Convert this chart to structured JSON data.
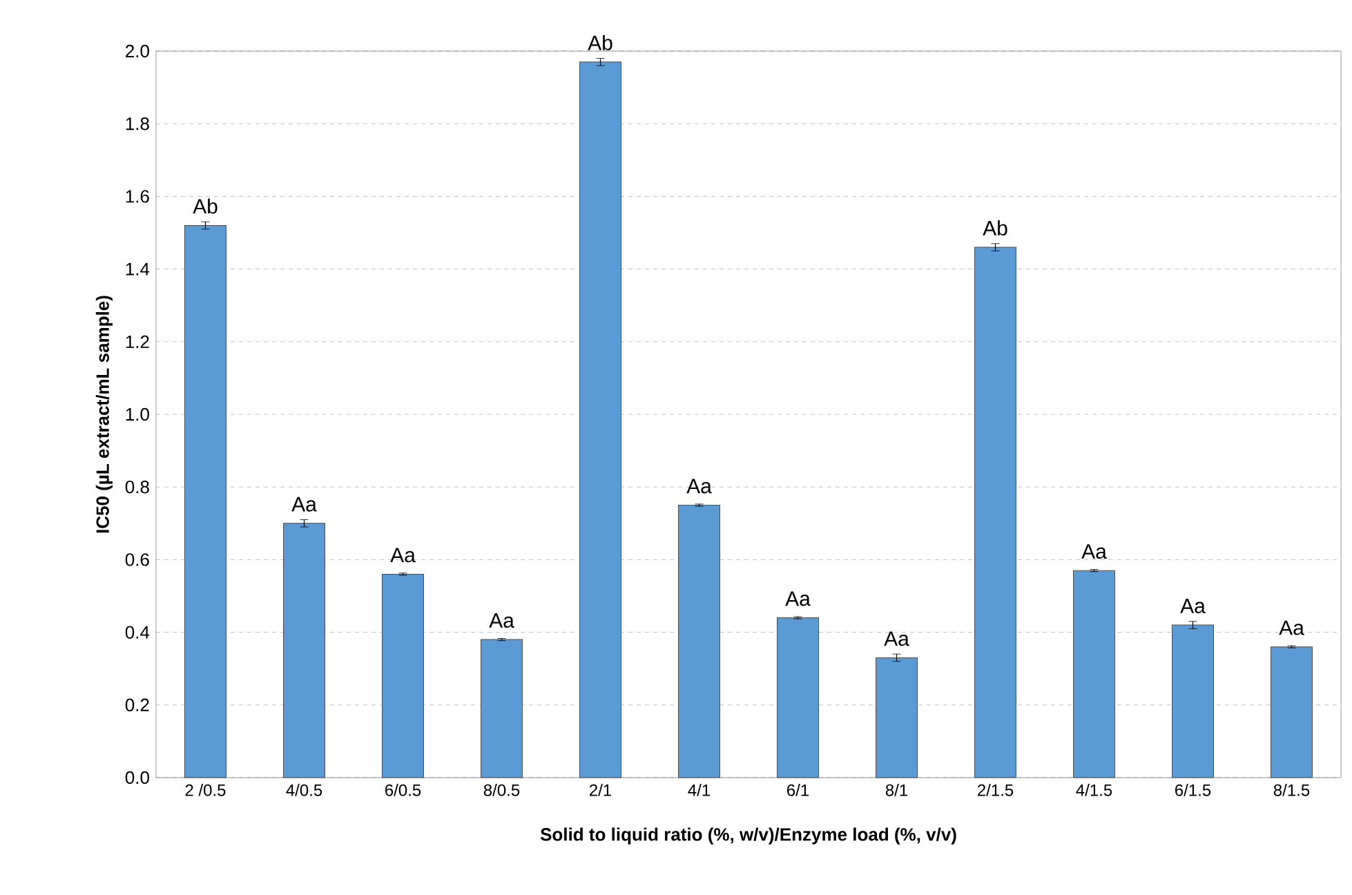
{
  "chart_data": {
    "type": "bar",
    "xlabel": "Solid to liquid ratio (%, w/v)/Enzyme load (%, v/v)",
    "ylabel": "IC50 (µL extract/mL sample)",
    "categories": [
      "2 /0.5",
      "4/0.5",
      "6/0.5",
      "8/0.5",
      "2/1",
      "4/1",
      "6/1",
      "8/1",
      "2/1.5",
      "4/1.5",
      "6/1.5",
      "8/1.5"
    ],
    "values": [
      1.52,
      0.7,
      0.56,
      0.38,
      1.97,
      0.75,
      0.44,
      0.33,
      1.46,
      0.57,
      0.42,
      0.36
    ],
    "errors": [
      0.01,
      0.01,
      0.003,
      0.003,
      0.01,
      0.003,
      0.003,
      0.01,
      0.01,
      0.003,
      0.01,
      0.003
    ],
    "color": "#5b9bd5",
    "ylim": [
      0,
      2.0
    ],
    "yticks": [
      {
        "value": 0,
        "label": "0.0"
      },
      {
        "value": 0.2,
        "label": "0.2"
      },
      {
        "value": 0.4,
        "label": "0.4"
      },
      {
        "value": 0.6,
        "label": "0.6"
      },
      {
        "value": 0.8,
        "label": "0.8"
      },
      {
        "value": 1.0,
        "label": "1.0"
      },
      {
        "value": 1.2,
        "label": "1.2"
      },
      {
        "value": 1.4,
        "label": "1.4"
      },
      {
        "value": 1.6,
        "label": "1.6"
      },
      {
        "value": 1.8,
        "label": "1.8"
      },
      {
        "value": 2.0,
        "label": "2.0"
      }
    ],
    "grid": "y",
    "annotations": [
      {
        "text": "Ab",
        "x": "2 /0.5",
        "y": 1.52
      },
      {
        "text": "Aa",
        "x": "4/0.5",
        "y": 0.7
      },
      {
        "text": "Aa",
        "x": "6/0.5",
        "y": 0.56
      },
      {
        "text": "Aa",
        "x": "8/0.5",
        "y": 0.38
      },
      {
        "text": "Ab",
        "x": "2/1",
        "y": 1.97
      },
      {
        "text": "Aa",
        "x": "4/1",
        "y": 0.75
      },
      {
        "text": "Aa",
        "x": "6/1",
        "y": 0.44
      },
      {
        "text": "Aa",
        "x": "8/1",
        "y": 0.33
      },
      {
        "text": "Ab",
        "x": "2/1.5",
        "y": 1.46
      },
      {
        "text": "Aa",
        "x": "4/1.5",
        "y": 0.57
      },
      {
        "text": "Aa",
        "x": "6/1.5",
        "y": 0.42
      },
      {
        "text": "Aa",
        "x": "8/1.5",
        "y": 0.36
      }
    ]
  }
}
